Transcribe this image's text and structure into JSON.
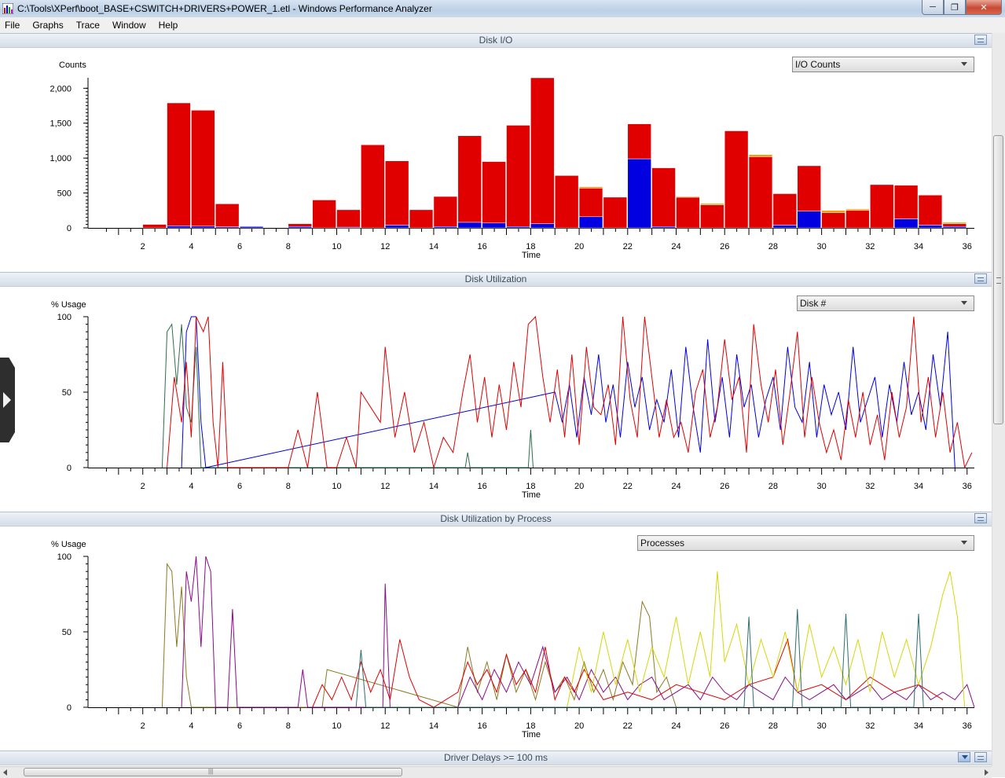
{
  "window": {
    "title": "C:\\Tools\\XPerf\\boot_BASE+CSWITCH+DRIVERS+POWER_1.etl - Windows Performance Analyzer",
    "icon": "wpa-chart-icon",
    "controls": {
      "minimize": "minimize-icon",
      "restore": "restore-icon",
      "close": "close-icon"
    }
  },
  "menu": {
    "items": [
      "File",
      "Graphs",
      "Trace",
      "Window",
      "Help"
    ]
  },
  "panels": [
    {
      "title": "Disk I/O",
      "selector": "I/O Counts",
      "ylabel": "Counts",
      "xlabel": "Time"
    },
    {
      "title": "Disk Utilization",
      "selector": "Disk #",
      "ylabel": "% Usage",
      "xlabel": "Time"
    },
    {
      "title": "Disk Utilization by Process",
      "selector": "Processes",
      "ylabel": "% Usage",
      "xlabel": "Time"
    },
    {
      "title": "Driver Delays >= 100 ms"
    }
  ],
  "colors": {
    "red": "#e00000",
    "blue": "#0000e0",
    "orange": "#ff9c00",
    "green": "#2e6e50",
    "purple": "#8b0a8b",
    "yellow": "#d6d60a",
    "olive": "#8a7a20",
    "teal": "#2e6e6e"
  },
  "chart_data": [
    {
      "type": "bar",
      "title": "Disk I/O",
      "xlabel": "Time",
      "ylabel": "Counts",
      "xlim": [
        0,
        36.3
      ],
      "ylim": [
        0,
        2150
      ],
      "x_ticks": [
        2,
        4,
        6,
        8,
        10,
        12,
        14,
        16,
        18,
        20,
        22,
        24,
        26,
        28,
        30,
        32,
        34,
        36
      ],
      "y_ticks": [
        0,
        500,
        1000,
        1500,
        2000
      ],
      "y_tick_labels": [
        "0",
        "500",
        "1,000",
        "1,500",
        "2,000"
      ],
      "bin_width": 1,
      "bins_start": [
        1,
        2,
        3,
        4,
        5,
        6,
        7,
        8,
        9,
        10,
        11,
        12,
        13,
        14,
        15,
        16,
        17,
        18,
        19,
        20,
        21,
        22,
        23,
        24,
        25,
        26,
        27,
        28,
        29,
        30,
        31,
        32,
        33,
        34,
        35
      ],
      "series": [
        {
          "color": "blue",
          "values": [
            0,
            0,
            30,
            25,
            15,
            20,
            0,
            20,
            0,
            10,
            0,
            40,
            0,
            20,
            80,
            70,
            20,
            60,
            0,
            160,
            0,
            990,
            20,
            0,
            0,
            0,
            0,
            40,
            240,
            0,
            0,
            0,
            130,
            40,
            20
          ]
        },
        {
          "color": "red",
          "values": [
            0,
            50,
            1760,
            1660,
            330,
            0,
            0,
            40,
            400,
            250,
            1190,
            920,
            260,
            430,
            1240,
            880,
            1450,
            2090,
            750,
            410,
            440,
            500,
            840,
            440,
            330,
            1390,
            1020,
            450,
            650,
            220,
            250,
            620,
            480,
            430,
            40
          ]
        },
        {
          "color": "orange",
          "values": [
            0,
            0,
            0,
            0,
            0,
            0,
            0,
            0,
            0,
            0,
            0,
            0,
            0,
            0,
            0,
            0,
            0,
            0,
            0,
            20,
            0,
            0,
            0,
            10,
            20,
            0,
            30,
            0,
            0,
            30,
            20,
            0,
            0,
            0,
            20
          ]
        }
      ]
    },
    {
      "type": "line",
      "title": "Disk Utilization",
      "xlabel": "Time",
      "ylabel": "% Usage",
      "xlim": [
        0,
        36.3
      ],
      "ylim": [
        0,
        100
      ],
      "x_ticks": [
        2,
        4,
        6,
        8,
        10,
        12,
        14,
        16,
        18,
        20,
        22,
        24,
        26,
        28,
        30,
        32,
        34,
        36
      ],
      "y_ticks": [
        0,
        50,
        100
      ],
      "series": [
        {
          "color": "green",
          "x": [
            2.8,
            3.0,
            3.2,
            3.4,
            3.6,
            3.8,
            4.0,
            4.2,
            4.4,
            15.3,
            15.4,
            15.5,
            17.9,
            18.0,
            18.1
          ],
          "y": [
            0,
            90,
            95,
            55,
            95,
            40,
            30,
            80,
            0,
            0,
            10,
            0,
            0,
            25,
            0
          ]
        },
        {
          "color": "blue",
          "x": [
            3.6,
            3.8,
            4.0,
            4.2,
            4.4,
            4.6,
            19.0,
            19.3,
            19.6,
            19.9,
            20.2,
            20.5,
            20.8,
            21.1,
            21.4,
            21.7,
            22.0,
            22.3,
            22.6,
            22.9,
            23.2,
            23.5,
            23.8,
            24.1,
            24.4,
            24.7,
            25.0,
            25.3,
            25.6,
            25.9,
            26.2,
            26.5,
            26.8,
            27.1,
            27.4,
            27.7,
            28.0,
            28.3,
            28.6,
            28.9,
            29.2,
            29.5,
            29.8,
            30.1,
            30.4,
            30.7,
            31.0,
            31.3,
            31.6,
            31.9,
            32.2,
            32.5,
            32.8,
            33.1,
            33.4,
            33.7,
            34.0,
            34.3,
            34.6,
            34.9,
            35.2,
            35.5
          ],
          "y": [
            0,
            90,
            100,
            100,
            30,
            0,
            50,
            30,
            55,
            20,
            60,
            35,
            75,
            30,
            55,
            20,
            70,
            40,
            60,
            25,
            45,
            30,
            65,
            20,
            80,
            40,
            10,
            85,
            30,
            60,
            20,
            75,
            40,
            55,
            20,
            45,
            60,
            25,
            80,
            40,
            30,
            70,
            20,
            55,
            35,
            50,
            25,
            80,
            30,
            45,
            60,
            20,
            55,
            30,
            70,
            35,
            50,
            25,
            75,
            40,
            90,
            0
          ]
        },
        {
          "color": "red",
          "x": [
            3.0,
            3.3,
            3.6,
            3.8,
            4.0,
            4.2,
            4.5,
            4.7,
            4.9,
            5.1,
            5.3,
            5.5,
            5.7,
            5.9,
            8.0,
            8.4,
            8.8,
            9.2,
            9.6,
            10.0,
            10.4,
            10.8,
            11.0,
            11.4,
            11.8,
            12.0,
            12.4,
            12.8,
            13.2,
            13.6,
            14.0,
            14.4,
            14.8,
            15.2,
            15.5,
            15.8,
            16.1,
            16.4,
            16.7,
            17.0,
            17.3,
            17.6,
            17.9,
            18.2,
            18.5,
            18.8,
            19.1,
            19.4,
            19.7,
            20.0,
            20.3,
            20.6,
            20.9,
            21.2,
            21.5,
            21.8,
            22.1,
            22.4,
            22.7,
            23.0,
            23.3,
            23.6,
            23.9,
            24.2,
            24.5,
            24.8,
            25.1,
            25.4,
            25.7,
            26.0,
            26.3,
            26.6,
            26.9,
            27.2,
            27.5,
            27.8,
            28.1,
            28.4,
            28.7,
            29.0,
            29.3,
            29.6,
            29.9,
            30.2,
            30.5,
            30.8,
            31.1,
            31.4,
            31.7,
            32.0,
            32.3,
            32.6,
            32.9,
            33.2,
            33.5,
            33.8,
            34.1,
            34.4,
            34.7,
            35.0,
            35.3,
            35.6,
            35.9,
            36.2
          ],
          "y": [
            0,
            60,
            30,
            70,
            20,
            100,
            90,
            100,
            30,
            0,
            70,
            0,
            0,
            0,
            0,
            25,
            0,
            50,
            0,
            0,
            20,
            0,
            50,
            40,
            30,
            80,
            20,
            50,
            10,
            30,
            0,
            20,
            10,
            50,
            75,
            30,
            60,
            20,
            55,
            25,
            70,
            40,
            95,
            100,
            60,
            30,
            65,
            20,
            75,
            15,
            80,
            40,
            35,
            55,
            15,
            100,
            45,
            20,
            100,
            60,
            20,
            45,
            20,
            30,
            10,
            50,
            65,
            20,
            40,
            85,
            45,
            60,
            10,
            95,
            55,
            30,
            65,
            15,
            50,
            90,
            20,
            60,
            30,
            10,
            25,
            5,
            45,
            20,
            50,
            15,
            35,
            5,
            50,
            20,
            40,
            100,
            30,
            60,
            20,
            50,
            10,
            30,
            0,
            10
          ]
        }
      ]
    },
    {
      "type": "line",
      "title": "Disk Utilization by Process",
      "xlabel": "Time",
      "ylabel": "% Usage",
      "xlim": [
        0,
        36.3
      ],
      "ylim": [
        0,
        100
      ],
      "x_ticks": [
        2,
        4,
        6,
        8,
        10,
        12,
        14,
        16,
        18,
        20,
        22,
        24,
        26,
        28,
        30,
        32,
        34,
        36
      ],
      "y_ticks": [
        0,
        50,
        100
      ],
      "series": [
        {
          "color": "olive",
          "x": [
            2.8,
            3.0,
            3.2,
            3.4,
            3.6,
            3.8,
            4.0,
            9.4,
            9.6,
            15.0,
            15.4,
            15.8,
            16.2,
            16.6,
            17.0,
            17.4,
            17.8,
            18.2,
            18.6,
            19.0,
            19.4,
            19.8,
            20.2,
            20.6,
            21.0,
            21.4,
            21.8,
            22.2,
            22.6,
            22.9,
            23.2,
            23.6,
            24.0
          ],
          "y": [
            0,
            95,
            90,
            40,
            80,
            20,
            0,
            0,
            25,
            0,
            40,
            10,
            30,
            5,
            35,
            10,
            25,
            5,
            30,
            10,
            20,
            5,
            30,
            10,
            25,
            5,
            30,
            15,
            70,
            60,
            10,
            20,
            0
          ]
        },
        {
          "color": "purple",
          "x": [
            3.6,
            3.8,
            4.0,
            4.2,
            4.4,
            4.6,
            4.8,
            5.0,
            5.5,
            5.7,
            5.9,
            8.4,
            8.6,
            8.8,
            11.9,
            12.0,
            12.2,
            15.0,
            15.5,
            16.0,
            16.5,
            17.0,
            17.5,
            18.0,
            18.5,
            19.0,
            19.5,
            20.0,
            20.5,
            21.0,
            21.5,
            22.0,
            22.5,
            23.0,
            23.5,
            24.0,
            24.5,
            25.0,
            25.5,
            26.0,
            26.5,
            27.0,
            27.5,
            28.0,
            28.5,
            29.0,
            29.5,
            30.0,
            30.5,
            31.0,
            31.5,
            32.0,
            32.5,
            33.0,
            33.5,
            34.0,
            34.5,
            35.0,
            35.5,
            36.0,
            36.3
          ],
          "y": [
            0,
            90,
            70,
            100,
            40,
            100,
            90,
            0,
            0,
            65,
            0,
            0,
            25,
            0,
            0,
            82,
            0,
            0,
            20,
            5,
            25,
            10,
            30,
            15,
            40,
            10,
            20,
            5,
            25,
            10,
            20,
            5,
            15,
            20,
            5,
            10,
            15,
            5,
            20,
            10,
            5,
            15,
            10,
            5,
            20,
            10,
            5,
            10,
            15,
            5,
            10,
            15,
            5,
            10,
            5,
            15,
            5,
            10,
            5,
            15,
            0
          ]
        },
        {
          "color": "red",
          "x": [
            9.0,
            9.4,
            9.8,
            10.2,
            10.6,
            11.0,
            11.4,
            11.8,
            12.2,
            12.6,
            13.0,
            13.4,
            14.0,
            15.0,
            15.4,
            15.8,
            16.2,
            16.6,
            17.0,
            17.4,
            17.8,
            18.2,
            18.6,
            19.0,
            19.4,
            19.8,
            20.2,
            20.6,
            21.0,
            22.0,
            23.0,
            24.0,
            25.0,
            26.0,
            27.0,
            28.0,
            28.6,
            29.0,
            30.0,
            31.0,
            32.0,
            33.0,
            34.0,
            35.0
          ],
          "y": [
            0,
            15,
            5,
            20,
            5,
            30,
            10,
            25,
            5,
            45,
            20,
            5,
            0,
            10,
            30,
            15,
            25,
            10,
            35,
            15,
            25,
            10,
            40,
            5,
            20,
            10,
            25,
            15,
            5,
            10,
            5,
            15,
            10,
            5,
            15,
            20,
            45,
            10,
            15,
            5,
            20,
            10,
            15,
            5
          ]
        },
        {
          "color": "yellow",
          "x": [
            19.5,
            20.0,
            20.5,
            21.0,
            21.5,
            22.0,
            22.5,
            23.0,
            23.5,
            24.0,
            24.5,
            25.0,
            25.4,
            25.7,
            26.0,
            26.5,
            27.0,
            27.5,
            28.0,
            28.5,
            29.0,
            29.5,
            30.0,
            30.5,
            31.0,
            31.5,
            32.0,
            32.5,
            33.0,
            33.5,
            34.0,
            34.5,
            35.0,
            35.3,
            35.6,
            35.9
          ],
          "y": [
            0,
            40,
            10,
            50,
            15,
            45,
            10,
            40,
            20,
            60,
            15,
            50,
            20,
            90,
            30,
            55,
            15,
            45,
            20,
            50,
            10,
            55,
            20,
            40,
            15,
            45,
            10,
            50,
            20,
            45,
            15,
            40,
            75,
            90,
            60,
            0
          ]
        },
        {
          "color": "teal",
          "x": [
            10.8,
            11.0,
            11.2,
            26.8,
            27.0,
            27.2,
            28.8,
            29.0,
            29.2,
            30.8,
            31.0,
            31.2,
            33.8,
            34.0,
            34.2
          ],
          "y": [
            0,
            38,
            0,
            0,
            60,
            0,
            0,
            65,
            0,
            0,
            62,
            0,
            0,
            62,
            0
          ]
        }
      ]
    }
  ]
}
